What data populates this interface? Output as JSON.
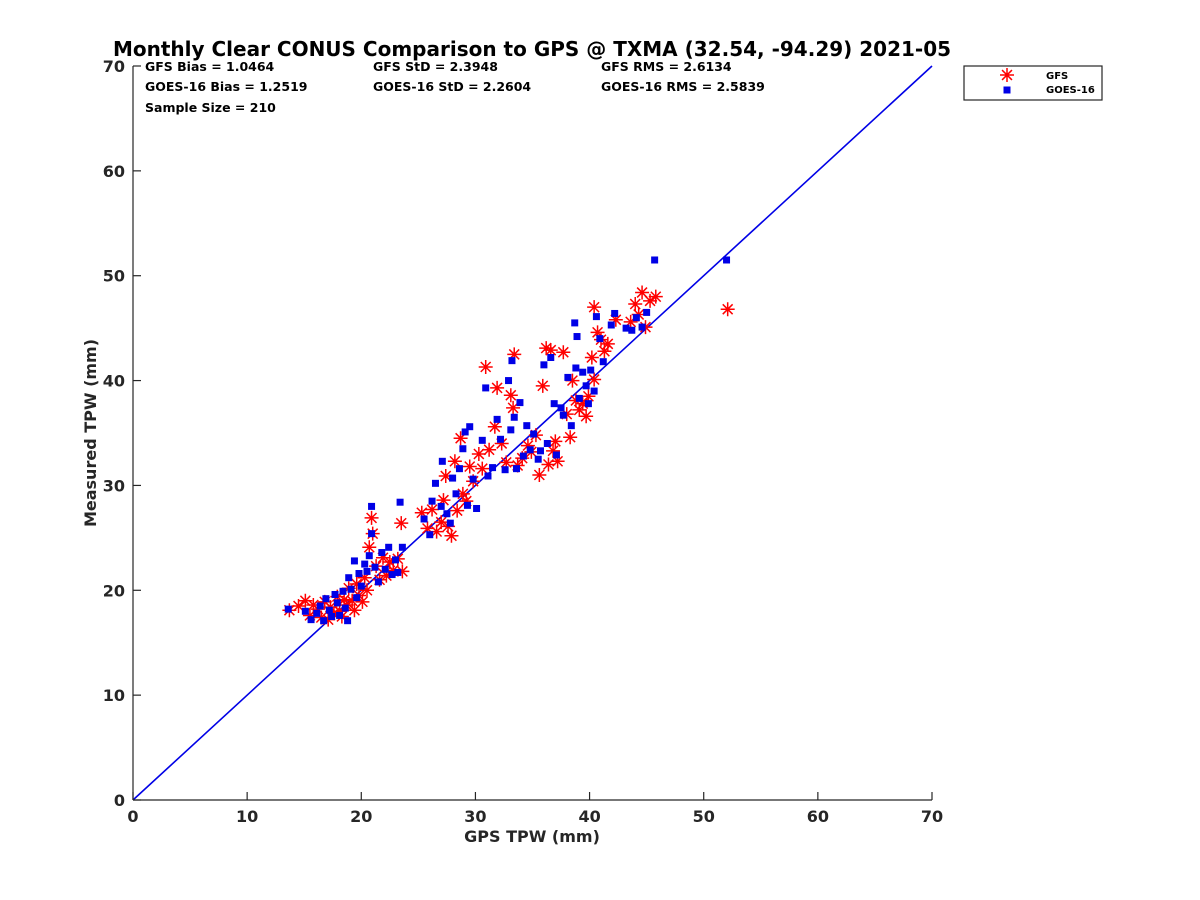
{
  "chart_data": {
    "type": "scatter",
    "title": "Monthly Clear CONUS Comparison to GPS @ TXMA (32.54, -94.29) 2021-05",
    "xlabel": "GPS TPW (mm)",
    "ylabel": "Measured TPW (mm)",
    "xlim": [
      0,
      70
    ],
    "ylim": [
      0,
      70
    ],
    "xticks": [
      "0",
      "10",
      "20",
      "30",
      "40",
      "50",
      "60",
      "70"
    ],
    "yticks": [
      "0",
      "10",
      "20",
      "30",
      "40",
      "50",
      "60",
      "70"
    ],
    "grid": false,
    "legend_position": "outside-top-right",
    "stats": {
      "gfs_bias": "GFS Bias = 1.0464",
      "gfs_std": "GFS StD = 2.3948",
      "gfs_rms": "GFS RMS = 2.6134",
      "goes_bias": "GOES-16 Bias = 1.2519",
      "goes_std": "GOES-16 StD = 2.2604",
      "goes_rms": "GOES-16 RMS = 2.5839",
      "sample_size": "Sample Size = 210"
    },
    "reference_line": {
      "color": "#0000e6",
      "points": [
        [
          0,
          0
        ],
        [
          70,
          70
        ]
      ]
    },
    "series": [
      {
        "name": "GFS",
        "marker": "asterisk",
        "color": "#ff0000",
        "points": [
          [
            13.7,
            18.1
          ],
          [
            14.5,
            18.5
          ],
          [
            15.1,
            19.0
          ],
          [
            15.5,
            17.6
          ],
          [
            15.8,
            18.6
          ],
          [
            16.2,
            18.2
          ],
          [
            16.5,
            17.4
          ],
          [
            16.8,
            18.9
          ],
          [
            17.1,
            17.2
          ],
          [
            17.3,
            18.4
          ],
          [
            17.6,
            17.8
          ],
          [
            17.9,
            19.4
          ],
          [
            18.1,
            18.0
          ],
          [
            18.3,
            17.5
          ],
          [
            18.5,
            19.1
          ],
          [
            18.7,
            18.6
          ],
          [
            18.9,
            20.2
          ],
          [
            19.2,
            19.0
          ],
          [
            19.4,
            18.1
          ],
          [
            19.6,
            20.6
          ],
          [
            19.8,
            19.5
          ],
          [
            20.1,
            18.9
          ],
          [
            20.3,
            21.2
          ],
          [
            20.5,
            20.0
          ],
          [
            20.7,
            24.1
          ],
          [
            20.9,
            26.9
          ],
          [
            21.0,
            25.4
          ],
          [
            21.3,
            22.3
          ],
          [
            21.6,
            21.0
          ],
          [
            21.9,
            23.1
          ],
          [
            22.2,
            21.4
          ],
          [
            22.5,
            22.7
          ],
          [
            22.8,
            21.9
          ],
          [
            23.2,
            23.0
          ],
          [
            23.5,
            26.4
          ],
          [
            23.6,
            21.8
          ],
          [
            25.3,
            27.4
          ],
          [
            25.8,
            25.9
          ],
          [
            26.2,
            27.7
          ],
          [
            26.6,
            25.6
          ],
          [
            27.0,
            26.5
          ],
          [
            27.2,
            28.6
          ],
          [
            27.4,
            30.9
          ],
          [
            27.6,
            26.1
          ],
          [
            27.9,
            25.2
          ],
          [
            28.2,
            32.3
          ],
          [
            28.4,
            27.6
          ],
          [
            28.7,
            34.5
          ],
          [
            28.9,
            29.2
          ],
          [
            29.2,
            28.5
          ],
          [
            29.5,
            31.8
          ],
          [
            29.8,
            30.4
          ],
          [
            30.3,
            33.0
          ],
          [
            30.6,
            31.6
          ],
          [
            30.9,
            41.3
          ],
          [
            31.2,
            33.4
          ],
          [
            31.7,
            35.6
          ],
          [
            31.9,
            39.3
          ],
          [
            32.3,
            34.0
          ],
          [
            32.7,
            32.2
          ],
          [
            33.1,
            38.6
          ],
          [
            33.4,
            42.5
          ],
          [
            33.3,
            37.4
          ],
          [
            33.7,
            31.9
          ],
          [
            34.1,
            32.6
          ],
          [
            34.6,
            33.8
          ],
          [
            34.9,
            33.2
          ],
          [
            35.3,
            34.8
          ],
          [
            35.6,
            31.0
          ],
          [
            35.9,
            39.5
          ],
          [
            36.2,
            43.1
          ],
          [
            36.4,
            32.0
          ],
          [
            36.6,
            42.9
          ],
          [
            36.8,
            33.3
          ],
          [
            37.0,
            34.2
          ],
          [
            37.2,
            32.3
          ],
          [
            37.7,
            42.7
          ],
          [
            38.0,
            36.8
          ],
          [
            38.3,
            34.6
          ],
          [
            38.5,
            40.0
          ],
          [
            38.8,
            38.1
          ],
          [
            39.1,
            37.2
          ],
          [
            39.4,
            37.8
          ],
          [
            39.7,
            36.6
          ],
          [
            39.9,
            38.5
          ],
          [
            40.2,
            42.2
          ],
          [
            40.4,
            40.1
          ],
          [
            40.4,
            47.0
          ],
          [
            40.7,
            44.6
          ],
          [
            41.0,
            43.9
          ],
          [
            41.3,
            42.8
          ],
          [
            41.6,
            43.5
          ],
          [
            42.3,
            45.8
          ],
          [
            43.6,
            45.6
          ],
          [
            44.0,
            47.3
          ],
          [
            44.3,
            46.3
          ],
          [
            44.6,
            48.4
          ],
          [
            44.9,
            45.1
          ],
          [
            45.3,
            47.6
          ],
          [
            45.8,
            48.0
          ],
          [
            52.1,
            46.8
          ]
        ]
      },
      {
        "name": "GOES-16",
        "marker": "square",
        "color": "#0000e6",
        "points": [
          [
            13.6,
            18.2
          ],
          [
            15.1,
            18.0
          ],
          [
            15.6,
            17.2
          ],
          [
            16.1,
            17.8
          ],
          [
            16.4,
            18.5
          ],
          [
            16.7,
            17.1
          ],
          [
            16.9,
            19.2
          ],
          [
            17.2,
            18.1
          ],
          [
            17.4,
            17.5
          ],
          [
            17.7,
            19.6
          ],
          [
            17.9,
            18.8
          ],
          [
            18.1,
            17.6
          ],
          [
            18.4,
            19.9
          ],
          [
            18.6,
            18.3
          ],
          [
            18.8,
            17.1
          ],
          [
            18.9,
            21.2
          ],
          [
            19.1,
            20.1
          ],
          [
            19.4,
            22.8
          ],
          [
            19.6,
            19.3
          ],
          [
            19.8,
            21.6
          ],
          [
            20.0,
            20.4
          ],
          [
            20.3,
            22.5
          ],
          [
            20.5,
            21.8
          ],
          [
            20.7,
            23.3
          ],
          [
            20.9,
            25.4
          ],
          [
            20.9,
            28.0
          ],
          [
            21.2,
            22.2
          ],
          [
            21.5,
            20.8
          ],
          [
            21.8,
            23.6
          ],
          [
            22.1,
            22.0
          ],
          [
            22.4,
            24.1
          ],
          [
            22.7,
            21.5
          ],
          [
            23.0,
            22.9
          ],
          [
            23.2,
            21.7
          ],
          [
            23.4,
            28.4
          ],
          [
            23.6,
            24.1
          ],
          [
            25.5,
            26.8
          ],
          [
            26.0,
            25.3
          ],
          [
            26.2,
            28.5
          ],
          [
            26.5,
            30.2
          ],
          [
            27.0,
            28.0
          ],
          [
            27.1,
            32.3
          ],
          [
            27.5,
            27.3
          ],
          [
            27.8,
            26.4
          ],
          [
            28.0,
            30.7
          ],
          [
            28.3,
            29.2
          ],
          [
            28.6,
            31.6
          ],
          [
            28.9,
            33.5
          ],
          [
            29.1,
            35.1
          ],
          [
            29.3,
            28.1
          ],
          [
            29.5,
            35.6
          ],
          [
            29.8,
            30.6
          ],
          [
            30.1,
            27.8
          ],
          [
            30.6,
            34.3
          ],
          [
            30.9,
            39.3
          ],
          [
            31.1,
            30.9
          ],
          [
            31.5,
            31.7
          ],
          [
            31.9,
            36.3
          ],
          [
            32.2,
            34.4
          ],
          [
            32.6,
            31.5
          ],
          [
            32.9,
            40.0
          ],
          [
            33.1,
            35.3
          ],
          [
            33.2,
            41.9
          ],
          [
            33.4,
            36.5
          ],
          [
            33.6,
            31.6
          ],
          [
            33.9,
            37.9
          ],
          [
            34.2,
            32.8
          ],
          [
            34.5,
            35.7
          ],
          [
            34.8,
            33.4
          ],
          [
            35.1,
            34.9
          ],
          [
            35.5,
            32.5
          ],
          [
            35.7,
            33.3
          ],
          [
            36.0,
            41.5
          ],
          [
            36.3,
            34.0
          ],
          [
            36.6,
            42.2
          ],
          [
            36.9,
            37.8
          ],
          [
            37.1,
            32.9
          ],
          [
            37.5,
            37.4
          ],
          [
            37.7,
            36.7
          ],
          [
            38.1,
            40.3
          ],
          [
            38.4,
            35.7
          ],
          [
            38.7,
            45.5
          ],
          [
            38.8,
            41.2
          ],
          [
            38.9,
            44.2
          ],
          [
            39.1,
            38.3
          ],
          [
            39.4,
            40.8
          ],
          [
            39.7,
            39.5
          ],
          [
            39.9,
            37.8
          ],
          [
            40.1,
            41.0
          ],
          [
            40.4,
            39.0
          ],
          [
            40.6,
            46.1
          ],
          [
            40.9,
            44.0
          ],
          [
            41.2,
            41.8
          ],
          [
            41.9,
            45.3
          ],
          [
            42.2,
            46.4
          ],
          [
            43.2,
            45.0
          ],
          [
            43.7,
            44.8
          ],
          [
            44.1,
            46.0
          ],
          [
            44.6,
            45.1
          ],
          [
            45.0,
            46.5
          ],
          [
            45.7,
            51.5
          ],
          [
            52.0,
            51.5
          ]
        ]
      }
    ]
  }
}
